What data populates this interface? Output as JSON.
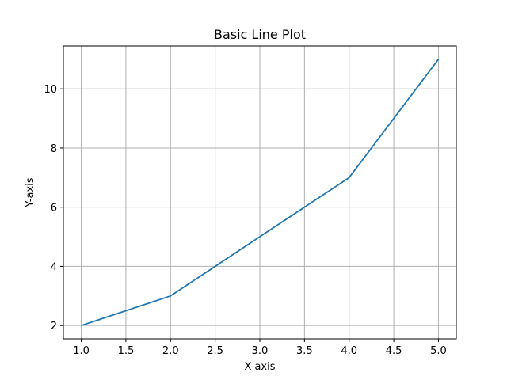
{
  "chart_data": {
    "type": "line",
    "title": "Basic Line Plot",
    "xlabel": "X-axis",
    "ylabel": "Y-axis",
    "x": [
      1,
      2,
      3,
      4,
      5
    ],
    "series": [
      {
        "values": [
          2,
          3,
          5,
          7,
          11
        ]
      }
    ],
    "xlim": [
      0.8,
      5.2
    ],
    "ylim": [
      1.55,
      11.45
    ],
    "x_ticks": [
      1.0,
      1.5,
      2.0,
      2.5,
      3.0,
      3.5,
      4.0,
      4.5,
      5.0
    ],
    "x_tick_labels": [
      "1.0",
      "1.5",
      "2.0",
      "2.5",
      "3.0",
      "3.5",
      "4.0",
      "4.5",
      "5.0"
    ],
    "y_ticks": [
      2,
      4,
      6,
      8,
      10
    ],
    "y_tick_labels": [
      "2",
      "4",
      "6",
      "8",
      "10"
    ],
    "grid": true,
    "line_color": "#1f77b4",
    "grid_color": "#b0b0b0"
  }
}
